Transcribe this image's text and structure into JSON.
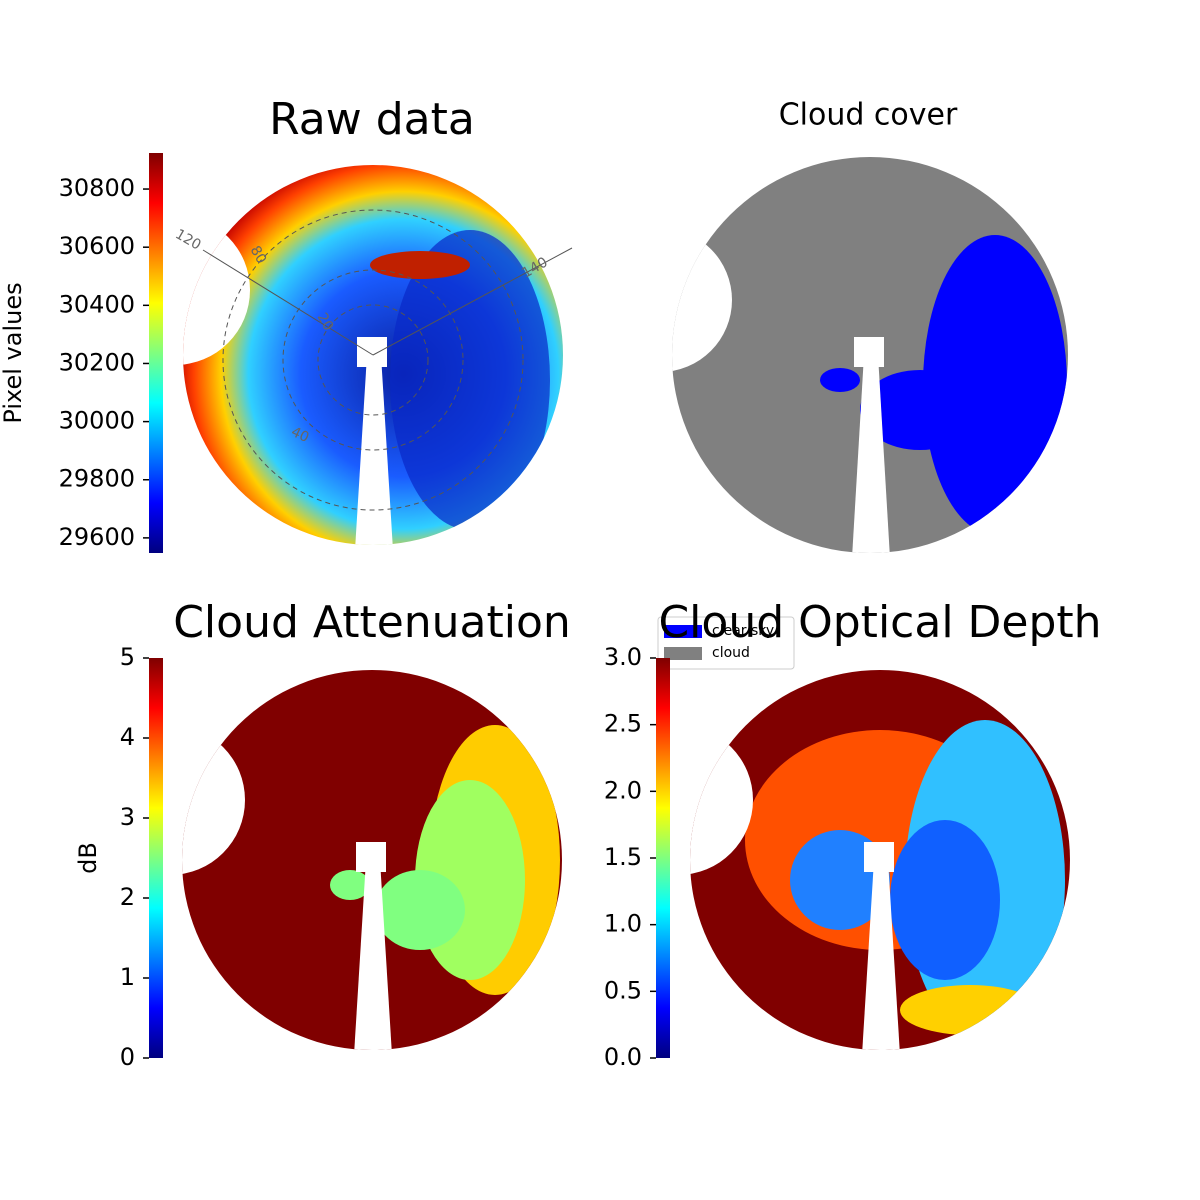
{
  "chart_data": [
    {
      "type": "image",
      "title": "Raw data",
      "cmap": "jet",
      "colorbar": {
        "label": "Pixel values",
        "clim": [
          29548,
          30924
        ],
        "ticks": [
          29600,
          29800,
          30000,
          30200,
          30400,
          30600,
          30800
        ]
      },
      "annotations": [
        "120",
        "80",
        "20",
        "40",
        "140"
      ]
    },
    {
      "type": "image",
      "title": "Cloud cover",
      "legend": [
        {
          "name": "clear sky",
          "color": "#0000ff"
        },
        {
          "name": "cloud",
          "color": "#808080"
        }
      ]
    },
    {
      "type": "image",
      "title": "Cloud Attenuation",
      "cmap": "jet",
      "colorbar": {
        "label": "dB",
        "clim": [
          0,
          5
        ],
        "ticks": [
          0,
          1,
          2,
          3,
          4,
          5
        ]
      }
    },
    {
      "type": "image",
      "title": "Cloud Optical Depth",
      "cmap": "jet",
      "colorbar": {
        "clim": [
          0,
          3
        ],
        "ticks": [
          {
            "value": 0,
            "label": "0.0"
          },
          0.5,
          {
            "value": 1,
            "label": "1.0"
          },
          1.5,
          {
            "value": 2,
            "label": "2.0"
          },
          2.5,
          {
            "value": 3,
            "label": "3.0"
          }
        ]
      }
    }
  ]
}
